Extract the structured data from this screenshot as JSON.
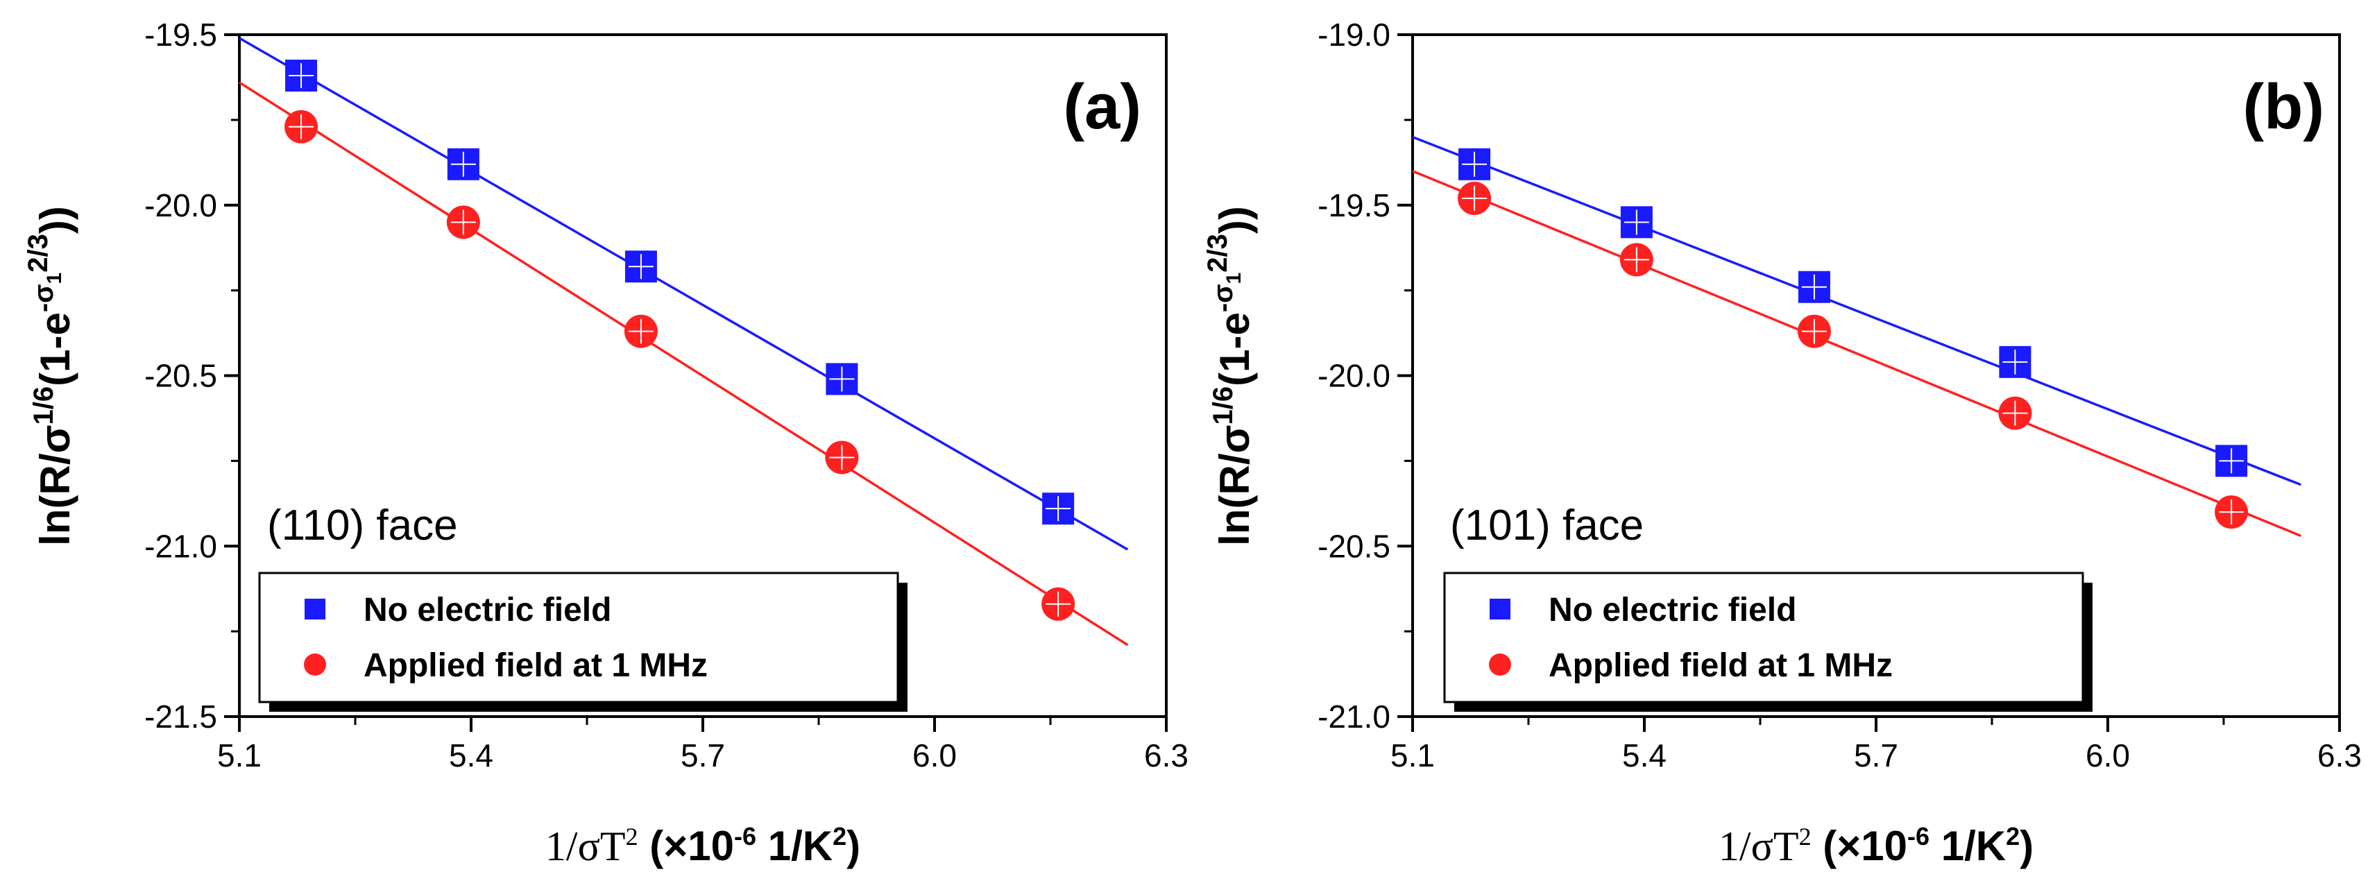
{
  "chart_data": [
    {
      "type": "scatter",
      "panel_label": "(a)",
      "face_label": "(110) face",
      "ylabel": {
        "pre": "ln(R/σ",
        "sup1": "1/6",
        "mid": "(1-e",
        "sup2": "-σ",
        "sub": "1",
        "sup3": "2/3",
        "post": "))"
      },
      "xlabel": {
        "a": "1/σT",
        "a_sup": "2",
        "b": " (×10",
        "b_sup": "-6",
        "c": " 1/K",
        "c_sup": "2",
        "d": ")"
      },
      "xlim": [
        5.1,
        6.3
      ],
      "ylim": [
        -21.5,
        -19.5
      ],
      "x_ticks": [
        "5.1",
        "5.4",
        "5.7",
        "6.0",
        "6.3"
      ],
      "y_ticks": [
        "-19.5",
        "-20.0",
        "-20.5",
        "-21.0",
        "-21.5"
      ],
      "legend": {
        "placement": "bottom-left"
      },
      "series": [
        {
          "name": "No electric field",
          "marker": "square",
          "color": "#1a1aff",
          "x": [
            5.18,
            5.39,
            5.62,
            5.88,
            6.16
          ],
          "y": [
            -19.62,
            -19.88,
            -20.18,
            -20.51,
            -20.89
          ],
          "fit": {
            "x": [
              5.1,
              6.25
            ],
            "y": [
              -19.51,
              -21.01
            ]
          }
        },
        {
          "name": "Applied field at 1 MHz",
          "marker": "circle",
          "color": "#ff2020",
          "x": [
            5.18,
            5.39,
            5.62,
            5.88,
            6.16
          ],
          "y": [
            -19.77,
            -20.05,
            -20.37,
            -20.74,
            -21.17
          ],
          "fit": {
            "x": [
              5.1,
              6.25
            ],
            "y": [
              -19.64,
              -21.29
            ]
          }
        }
      ]
    },
    {
      "type": "scatter",
      "panel_label": "(b)",
      "face_label": "(101) face",
      "ylabel": {
        "pre": "ln(R/σ",
        "sup1": "1/6",
        "mid": "(1-e",
        "sup2": "-σ",
        "sub": "1",
        "sup3": "2/3",
        "post": "))"
      },
      "xlabel": {
        "a": "1/σT",
        "a_sup": "2",
        "b": " (×10",
        "b_sup": "-6",
        "c": " 1/K",
        "c_sup": "2",
        "d": ")"
      },
      "xlim": [
        5.1,
        6.3
      ],
      "ylim": [
        -21.0,
        -19.0
      ],
      "x_ticks": [
        "5.1",
        "5.4",
        "5.7",
        "6.0",
        "6.3"
      ],
      "y_ticks": [
        "-19.0",
        "-19.5",
        "-20.0",
        "-20.5",
        "-21.0"
      ],
      "legend": {
        "placement": "bottom-left"
      },
      "series": [
        {
          "name": "No electric field",
          "marker": "square",
          "color": "#1a1aff",
          "x": [
            5.18,
            5.39,
            5.62,
            5.88,
            6.16
          ],
          "y": [
            -19.38,
            -19.55,
            -19.74,
            -19.96,
            -20.25
          ],
          "fit": {
            "x": [
              5.1,
              6.25
            ],
            "y": [
              -19.3,
              -20.32
            ]
          }
        },
        {
          "name": "Applied field at 1 MHz",
          "marker": "circle",
          "color": "#ff2020",
          "x": [
            5.18,
            5.39,
            5.62,
            5.88,
            6.16
          ],
          "y": [
            -19.48,
            -19.66,
            -19.87,
            -20.11,
            -20.4
          ],
          "fit": {
            "x": [
              5.1,
              6.25
            ],
            "y": [
              -19.4,
              -20.47
            ]
          }
        }
      ]
    }
  ]
}
